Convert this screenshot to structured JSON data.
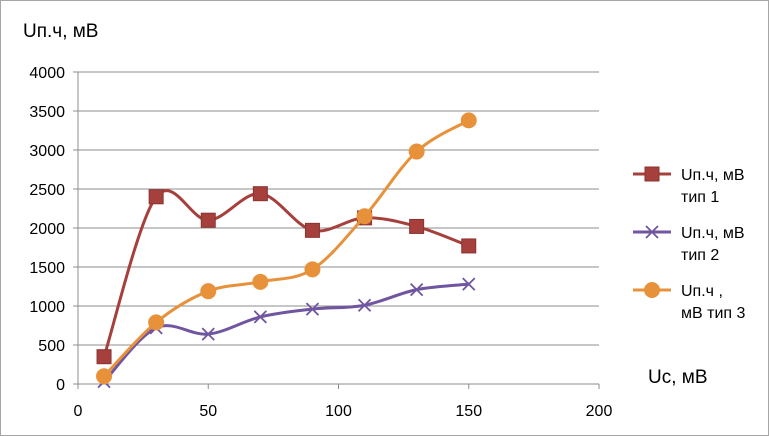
{
  "chart_data": {
    "type": "line",
    "title": "",
    "ylabel": "Uп.ч, мВ",
    "xlabel": "Uc, мВ",
    "xlim": [
      0,
      200
    ],
    "ylim": [
      0,
      4000
    ],
    "x_ticks": [
      0,
      50,
      100,
      150,
      200
    ],
    "y_ticks": [
      0,
      500,
      1000,
      1500,
      2000,
      2500,
      3000,
      3500,
      4000
    ],
    "grid": "horizontal",
    "smooth": true,
    "legend_position": "right",
    "series": [
      {
        "name_lines": [
          "Uп.ч, мВ",
          "тип 1"
        ],
        "color": "#a5403d",
        "marker": "square",
        "x": [
          10,
          30,
          50,
          70,
          90,
          110,
          130,
          150
        ],
        "y": [
          350,
          2400,
          2100,
          2440,
          1970,
          2130,
          2020,
          1770
        ]
      },
      {
        "name_lines": [
          "Uп.ч, мВ",
          "тип 2"
        ],
        "color": "#7055a0",
        "marker": "x",
        "x": [
          10,
          30,
          50,
          70,
          90,
          110,
          130,
          150
        ],
        "y": [
          30,
          720,
          640,
          860,
          960,
          1010,
          1210,
          1280
        ]
      },
      {
        "name_lines": [
          "Uп.ч ,",
          "мВ тип 3"
        ],
        "color": "#e8913b",
        "marker": "circle",
        "x": [
          10,
          30,
          50,
          70,
          90,
          110,
          130,
          150
        ],
        "y": [
          100,
          790,
          1190,
          1310,
          1470,
          2150,
          2980,
          3380
        ]
      }
    ]
  }
}
